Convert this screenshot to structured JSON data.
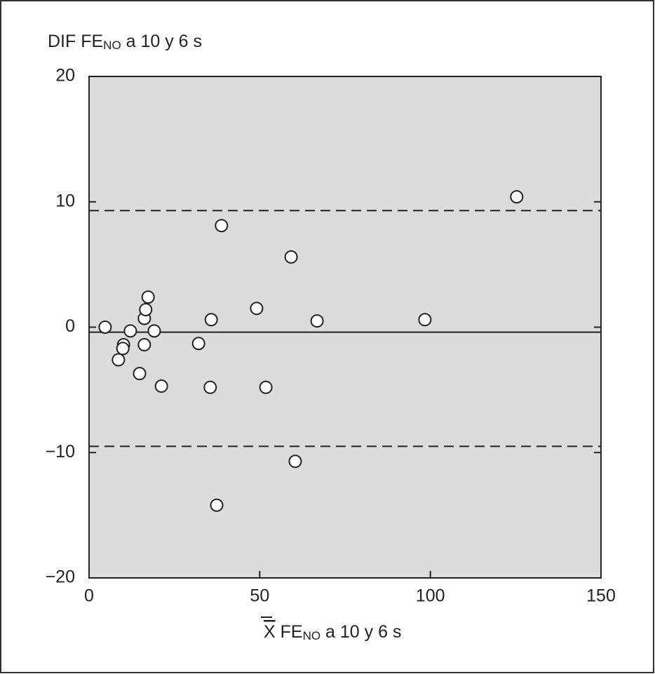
{
  "chart_data": {
    "type": "scatter",
    "y_label": [
      "DIF FE",
      "NO",
      " a 10 y 6 s"
    ],
    "x_label": [
      "X",
      " FE",
      "NO",
      " a 10 y 6 s"
    ],
    "xlim": [
      0,
      150
    ],
    "ylim": [
      -20,
      20
    ],
    "xticks": [
      0,
      50,
      100,
      150
    ],
    "yticks": [
      {
        "value": -20,
        "label": "−20"
      },
      {
        "value": -10,
        "label": "−10"
      },
      0,
      10,
      20
    ],
    "reference_lines": [
      {
        "value": -0.4,
        "style": "solid"
      },
      {
        "value": 9.3,
        "style": "dashed"
      },
      {
        "value": -9.5,
        "style": "dashed"
      }
    ],
    "plot_background": "#dcdcdc",
    "marker_color": "#ffffff",
    "x": [
      4.7,
      12.1,
      10.1,
      9.9,
      8.6,
      14.8,
      16.2,
      16.6,
      17.3,
      16.2,
      19.1,
      21.2,
      32.1,
      35.8,
      35.5,
      38.8,
      37.4,
      49.1,
      51.8,
      59.2,
      60.4,
      66.8,
      98.4,
      125.3
    ],
    "y": [
      0.0,
      -0.3,
      -1.4,
      -1.7,
      -2.6,
      -3.7,
      0.7,
      1.4,
      2.4,
      -1.4,
      -0.3,
      -4.7,
      -1.3,
      0.6,
      -4.8,
      8.1,
      -14.2,
      1.5,
      -4.8,
      5.6,
      -10.7,
      0.5,
      0.6,
      10.4
    ]
  }
}
